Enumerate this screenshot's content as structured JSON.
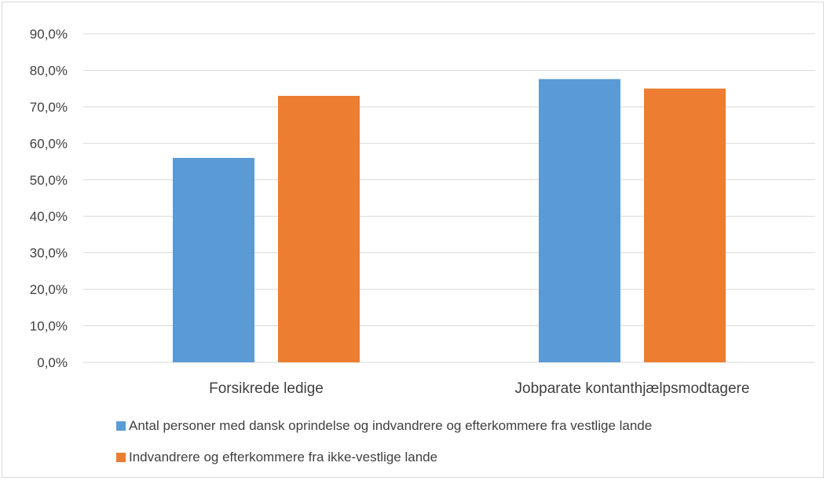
{
  "chart_data": {
    "type": "bar",
    "categories": [
      "Forsikrede ledige",
      "Jobparate kontanthjælpsmodtagere"
    ],
    "series": [
      {
        "name": "Antal personer med dansk oprindelse og indvandrere og efterkommere fra vestlige lande",
        "color": "#5b9bd5",
        "values": [
          56.0,
          77.6
        ]
      },
      {
        "name": "Indvandrere og efterkommere fra ikke-vestlige lande",
        "color": "#ed7d31",
        "values": [
          73.0,
          75.0
        ]
      }
    ],
    "ylim": [
      0,
      90
    ],
    "yticks": [
      0,
      10,
      20,
      30,
      40,
      50,
      60,
      70,
      80,
      90
    ],
    "ytick_labels": [
      "0,0%",
      "10,0%",
      "20,0%",
      "30,0%",
      "40,0%",
      "50,0%",
      "60,0%",
      "70,0%",
      "80,0%",
      "90,0%"
    ],
    "grid": true,
    "legend_position": "bottom",
    "title": "",
    "xlabel": "",
    "ylabel": ""
  }
}
